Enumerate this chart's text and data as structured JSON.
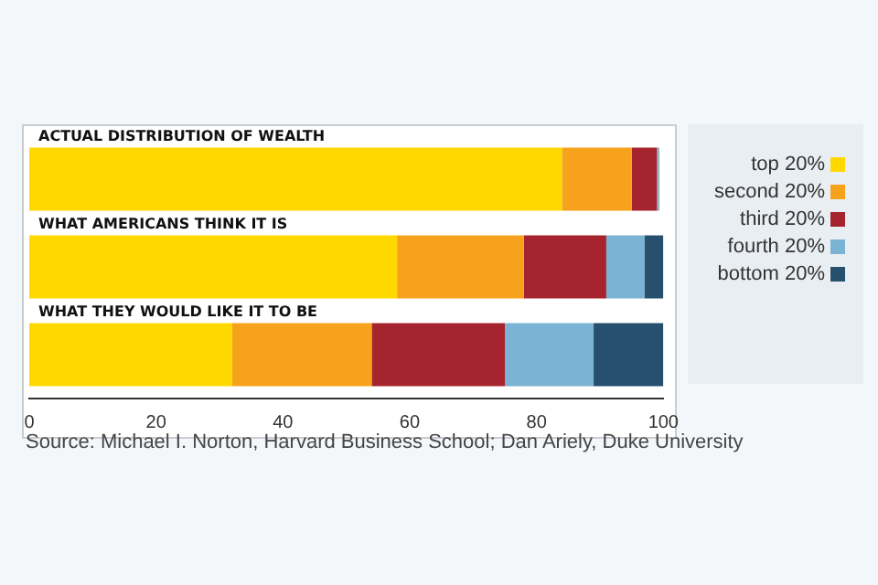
{
  "chart_data": {
    "type": "bar",
    "orientation": "horizontal",
    "stacked": true,
    "categories": [
      "ACTUAL DISTRIBUTION OF WEALTH",
      "WHAT AMERICANS THINK IT IS",
      "WHAT THEY WOULD LIKE IT TO BE"
    ],
    "series": [
      {
        "name": "top 20%",
        "color": "#ffd800",
        "values": [
          84,
          58,
          32
        ]
      },
      {
        "name": "second 20%",
        "color": "#f7a21d",
        "values": [
          11,
          20,
          22
        ]
      },
      {
        "name": "third 20%",
        "color": "#a6242e",
        "values": [
          4,
          13,
          21
        ]
      },
      {
        "name": "fourth 20%",
        "color": "#7ab3d4",
        "values": [
          0.2,
          6,
          14
        ]
      },
      {
        "name": "bottom 20%",
        "color": "#27506e",
        "values": [
          0.1,
          3,
          11
        ]
      }
    ],
    "xlim": [
      0,
      100
    ],
    "xticks": [
      0,
      20,
      40,
      60,
      80,
      100
    ],
    "grid": false,
    "legend": "right",
    "annotations": [
      "Source: Michael I. Norton, Harvard Business School; Dan Ariely, Duke University"
    ]
  }
}
